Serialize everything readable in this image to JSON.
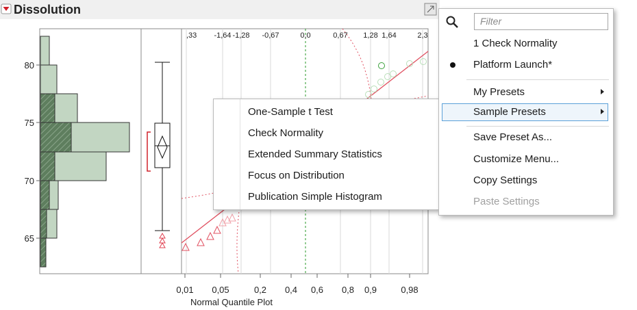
{
  "header": {
    "title": "Dissolution"
  },
  "histogram": {
    "axis_labels": [
      "80",
      "75",
      "70",
      "65"
    ]
  },
  "quantile_plot": {
    "top_labels": [
      ",33",
      "-1,64",
      "-1,28",
      "-0,67",
      "0,0",
      "0,67",
      "1,28",
      "1,64",
      "2,3"
    ],
    "bottom_labels": [
      "0,01",
      "0,05",
      "0,2",
      "0,4",
      "0,6",
      "0,8",
      "0,9",
      "0,98"
    ],
    "title": "Normal Quantile Plot"
  },
  "submenu": {
    "items": [
      "One-Sample t Test",
      "Check Normality",
      "Extended Summary Statistics",
      "Focus on Distribution",
      "Publication Simple Histogram"
    ]
  },
  "menu": {
    "filter_placeholder": "Filter",
    "items": [
      "1 Check Normality",
      "Platform Launch*",
      "My Presets",
      "Sample Presets",
      "Save Preset As...",
      "Customize Menu...",
      "Copy Settings",
      "Paste Settings"
    ]
  }
}
